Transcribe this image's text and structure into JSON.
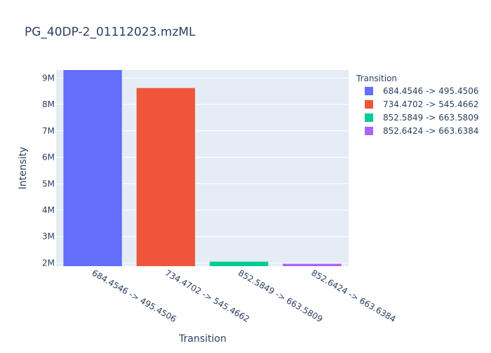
{
  "chart_data": {
    "type": "bar",
    "title": "PG_40DP-2_01112023.mzML",
    "xlabel": "Transition",
    "ylabel": "Intensity",
    "categories": [
      "684.4546 -> 495.4506",
      "734.4702 -> 545.4662",
      "852.5849 -> 663.5809",
      "852.6424 -> 663.6384"
    ],
    "values": [
      9300000,
      8620000,
      2050000,
      1970000
    ],
    "ylim": [
      1880000,
      9300000
    ],
    "yticks": [
      2000000,
      3000000,
      4000000,
      5000000,
      6000000,
      7000000,
      8000000,
      9000000
    ],
    "ytick_labels": [
      "2M",
      "3M",
      "4M",
      "5M",
      "6M",
      "7M",
      "8M",
      "9M"
    ],
    "colors": [
      "#636efa",
      "#EF553B",
      "#00cc96",
      "#ab63fa"
    ],
    "grid": true,
    "legend": {
      "title": "Transition",
      "placement": "right",
      "entries": [
        "684.4546 -> 495.4506",
        "734.4702 -> 545.4662",
        "852.5849 -> 663.5809",
        "852.6424 -> 663.6384"
      ]
    }
  }
}
